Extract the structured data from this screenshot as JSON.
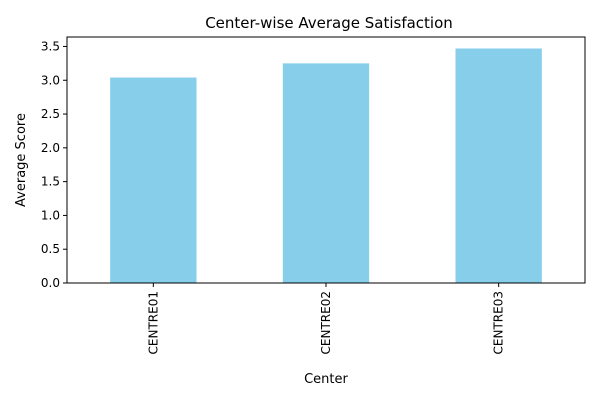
{
  "chart_data": {
    "type": "bar",
    "title": "Center-wise Average Satisfaction",
    "xlabel": "Center",
    "ylabel": "Average Score",
    "categories": [
      "CENTRE01",
      "CENTRE02",
      "CENTRE03"
    ],
    "values": [
      3.04,
      3.25,
      3.47
    ],
    "ylim": [
      0,
      3.64
    ],
    "yticks": [
      0.0,
      0.5,
      1.0,
      1.5,
      2.0,
      2.5,
      3.0,
      3.5
    ],
    "ytick_labels": [
      "0.0",
      "0.5",
      "1.0",
      "1.5",
      "2.0",
      "2.5",
      "3.0",
      "3.5"
    ],
    "bar_color": "#87ceeb",
    "grid": false,
    "legend": "none"
  }
}
